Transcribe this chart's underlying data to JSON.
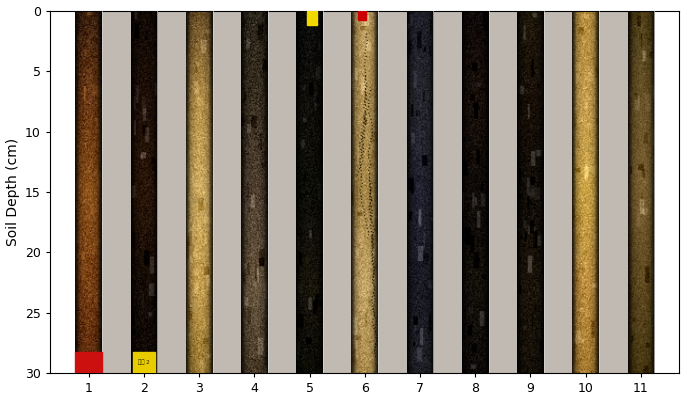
{
  "ylabel": "Soil Depth (cm)",
  "xlabel_ticks": [
    1,
    2,
    3,
    4,
    5,
    6,
    7,
    8,
    9,
    10,
    11
  ],
  "yticks": [
    0,
    5,
    10,
    15,
    20,
    25,
    30
  ],
  "ylim": [
    30,
    0
  ],
  "xlim": [
    0.3,
    11.7
  ],
  "figsize": [
    6.85,
    4.01
  ],
  "dpi": 100,
  "ylabel_fontsize": 10,
  "tick_fontsize": 9,
  "bg_color": "#ffffff",
  "plot_bg": "#d8d0c8",
  "cores": [
    {
      "x": 1,
      "base_colors": [
        "#3a1e08",
        "#6b3810",
        "#8c5218",
        "#7a4010",
        "#5c2a08"
      ],
      "highlight": "#c87a30",
      "style": "mottled_brown",
      "crack": false,
      "label_color": "#cc0000",
      "label_text": ""
    },
    {
      "x": 2,
      "base_colors": [
        "#120800",
        "#1e0e02",
        "#2a1504",
        "#150a00",
        "#0d0500"
      ],
      "highlight": "#3a2010",
      "style": "dark_brown",
      "crack": false,
      "label_color": null,
      "label_text": "",
      "has_yellow_tag": true
    },
    {
      "x": 3,
      "base_colors": [
        "#6b5028",
        "#b8924a",
        "#d4b064",
        "#c8a050",
        "#9a7830"
      ],
      "highlight": "#e8c878",
      "style": "tan_yellow",
      "crack": false,
      "label_color": null,
      "label_text": ""
    },
    {
      "x": 4,
      "base_colors": [
        "#2a2418",
        "#3a3020",
        "#504030",
        "#6a5840",
        "#4a3c28"
      ],
      "highlight": "#b89860",
      "style": "dark_mottled",
      "crack": false,
      "label_color": null,
      "label_text": ""
    },
    {
      "x": 5,
      "base_colors": [
        "#080808",
        "#100e08",
        "#0c0c04",
        "#181408",
        "#0a0a00"
      ],
      "highlight": "#282010",
      "style": "black",
      "crack": true,
      "label_color": null,
      "label_text": ""
    },
    {
      "x": 6,
      "base_colors": [
        "#c0a060",
        "#b89858",
        "#a88848",
        "#c8a868",
        "#b09050"
      ],
      "highlight": "#e0c890",
      "style": "tan_cracked",
      "crack": true,
      "label_color": null,
      "label_text": ""
    },
    {
      "x": 7,
      "base_colors": [
        "#1e1e28",
        "#282830",
        "#222230",
        "#1a1a24",
        "#202028"
      ],
      "highlight": "#404050",
      "style": "dark_gray",
      "crack": false,
      "label_color": null,
      "label_text": ""
    },
    {
      "x": 8,
      "base_colors": [
        "#100808",
        "#180e06",
        "#0e0804",
        "#141008",
        "#0c0806"
      ],
      "highlight": "#302018",
      "style": "very_dark",
      "crack": false,
      "label_color": null,
      "label_text": ""
    },
    {
      "x": 9,
      "base_colors": [
        "#201808",
        "#180e04",
        "#100a02",
        "#1c1408",
        "#140e04"
      ],
      "highlight": "#382818",
      "style": "very_dark2",
      "crack": false,
      "label_color": null,
      "label_text": ""
    },
    {
      "x": 10,
      "base_colors": [
        "#b89040",
        "#c8a050",
        "#d0a848",
        "#c09040",
        "#a87c30"
      ],
      "highlight": "#e8c870",
      "style": "sandy_yellow",
      "crack": false,
      "label_color": null,
      "label_text": ""
    },
    {
      "x": 11,
      "base_colors": [
        "#504018",
        "#6a5428",
        "#7a6030",
        "#604a20",
        "#483810"
      ],
      "highlight": "#9a7c40",
      "style": "medium_brown",
      "crack": false,
      "label_color": null,
      "label_text": ""
    }
  ]
}
